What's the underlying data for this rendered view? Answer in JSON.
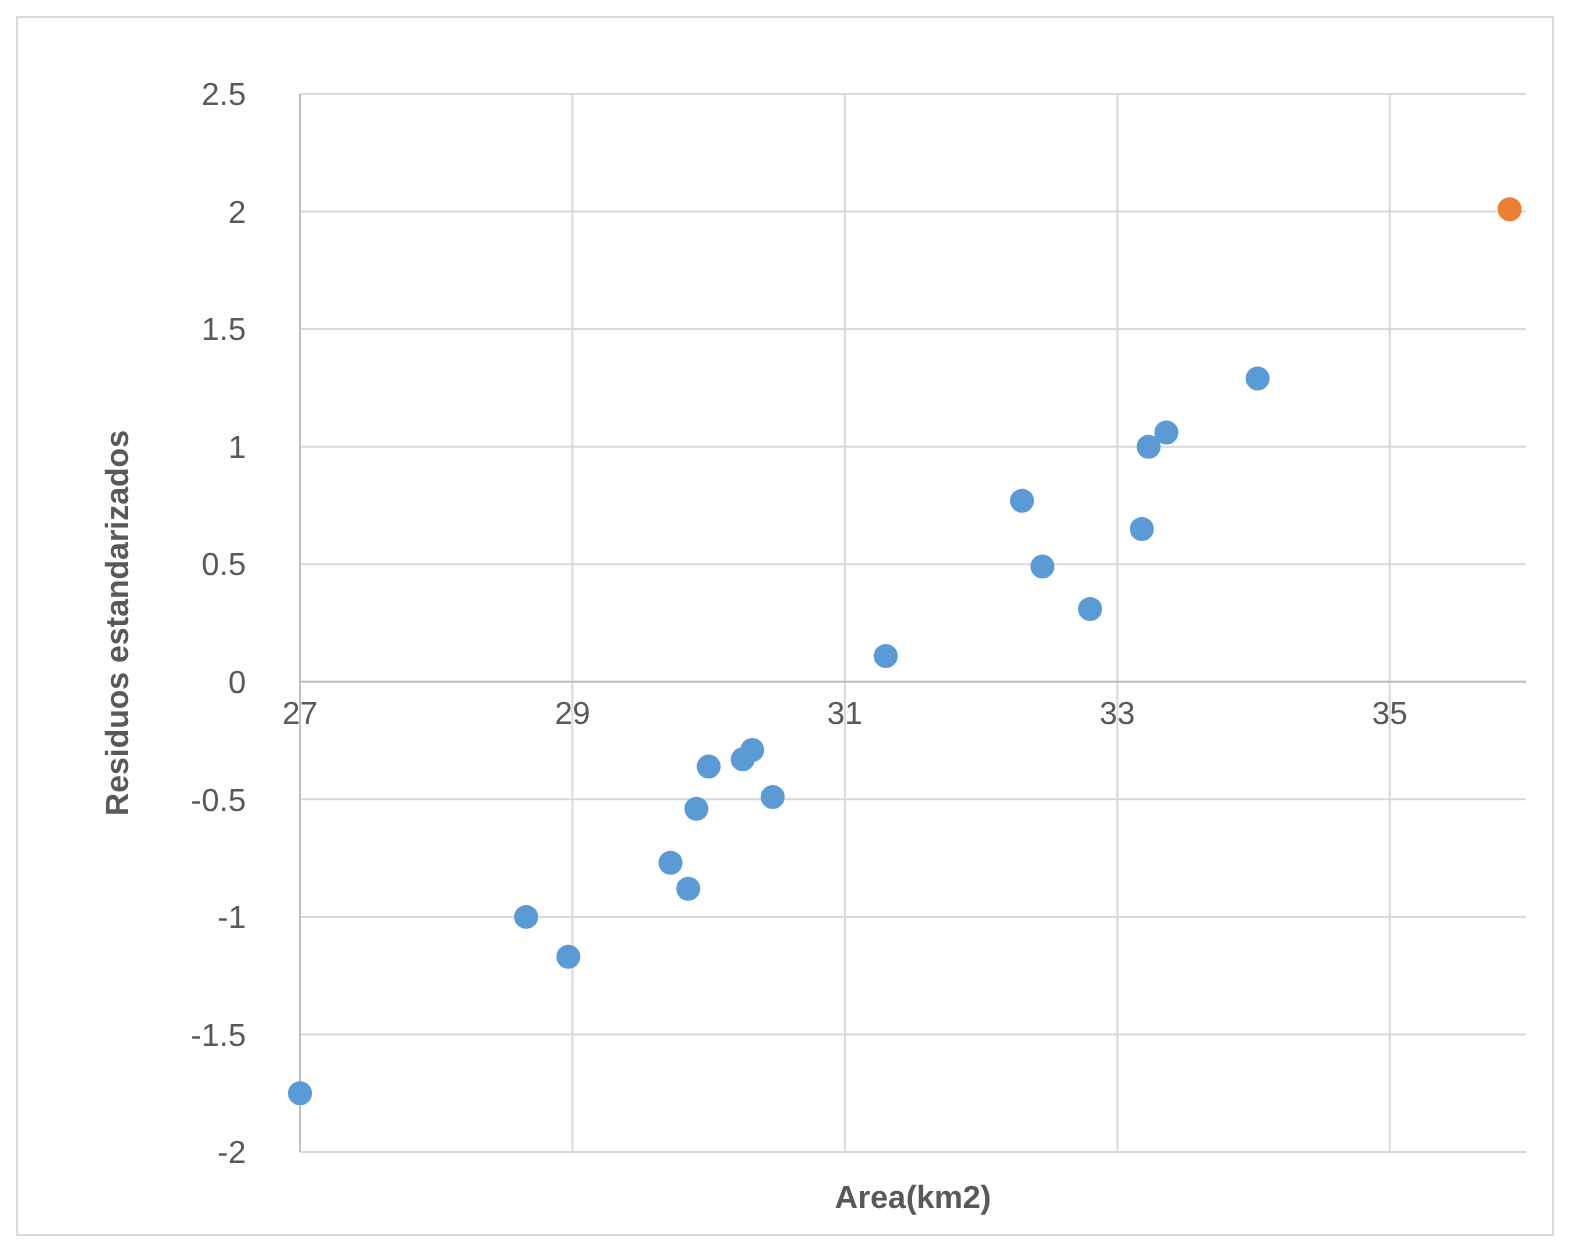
{
  "chart_data": {
    "type": "scatter",
    "xlabel": "Area(km2)",
    "ylabel": "Residuos estandarizados",
    "xlim": [
      27,
      36
    ],
    "xticks": [
      27,
      29,
      31,
      33,
      35
    ],
    "ylim": [
      -2,
      2.5
    ],
    "yticks": [
      -2,
      -1.5,
      -1,
      -0.5,
      0,
      0.5,
      1,
      1.5,
      2,
      2.5
    ],
    "grid": true,
    "marker": "circle",
    "series": [
      {
        "color": "#5b9bd5",
        "x": [
          27.0,
          28.66,
          28.97,
          29.72,
          29.85,
          29.91,
          30.0,
          30.25,
          30.32,
          30.47,
          31.3,
          32.3,
          32.45,
          32.8,
          33.18,
          33.23,
          33.36,
          34.03
        ],
        "values": [
          -1.75,
          -1.0,
          -1.17,
          -0.77,
          -0.88,
          -0.54,
          -0.36,
          -0.33,
          -0.29,
          -0.49,
          0.11,
          0.77,
          0.49,
          0.31,
          0.65,
          1.0,
          1.06,
          1.29
        ]
      },
      {
        "color": "#ed7d31",
        "x": [
          35.88
        ],
        "values": [
          2.01
        ]
      }
    ]
  }
}
